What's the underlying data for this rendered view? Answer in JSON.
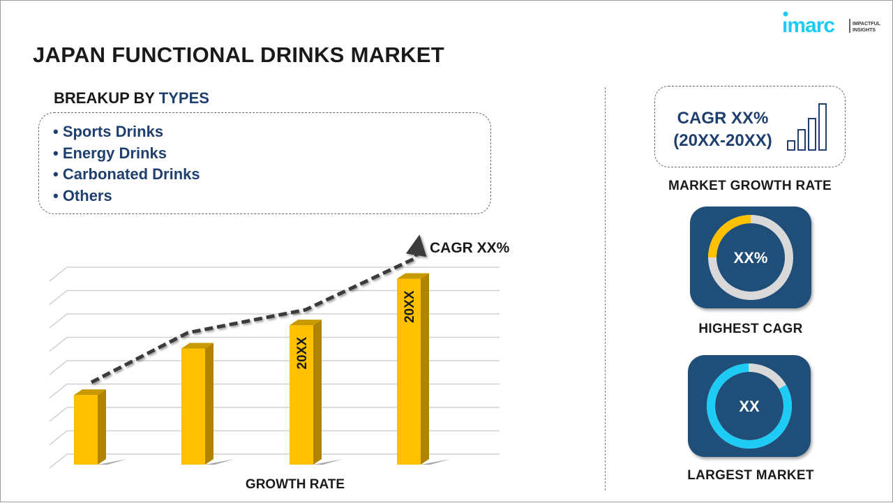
{
  "title": "JAPAN FUNCTIONAL DRINKS MARKET",
  "logo": {
    "brand": "imarc",
    "tagline_1": "IMPACTFUL",
    "tagline_2": "INSIGHTS"
  },
  "breakup": {
    "prefix": "BREAKUP BY ",
    "highlight": "TYPES",
    "items": [
      "• Sports Drinks",
      "• Energy Drinks",
      "• Carbonated Drinks",
      "• Others"
    ]
  },
  "growth": {
    "cagr_line1": "CAGR XX%",
    "cagr_line2": "(20XX-20XX)",
    "label": "MARKET GROWTH RATE"
  },
  "highest": {
    "value": "XX%",
    "label": "HIGHEST CAGR",
    "fraction": 0.25
  },
  "largest": {
    "value": "XX",
    "label": "LARGEST MARKET",
    "fraction": 0.83
  },
  "colors": {
    "bar": "#ffc000",
    "bar_side": "#b08400",
    "navy": "#1f4e79",
    "text_blue": "#1f3f6e",
    "cyan": "#1ecbf5",
    "gray": "#d9d9d9"
  },
  "chart_data": {
    "type": "bar",
    "categories": [
      "",
      "",
      "",
      ""
    ],
    "values": [
      3.0,
      5.0,
      6.0,
      8.0
    ],
    "data_labels": [
      "",
      "",
      "20XX",
      "20XX"
    ],
    "trend_label": "CAGR XX%",
    "xlabel": "GROWTH RATE",
    "ylabel": "",
    "ylim": [
      0,
      8.5
    ],
    "grid": true
  }
}
